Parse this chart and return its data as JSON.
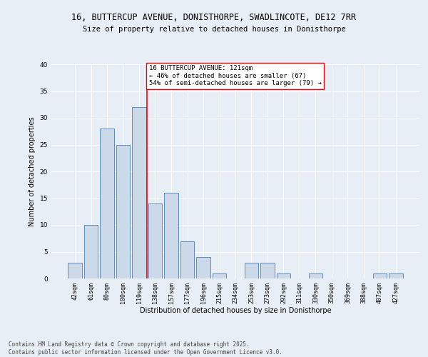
{
  "title_line1": "16, BUTTERCUP AVENUE, DONISTHORPE, SWADLINCOTE, DE12 7RR",
  "title_line2": "Size of property relative to detached houses in Donisthorpe",
  "xlabel": "Distribution of detached houses by size in Donisthorpe",
  "ylabel": "Number of detached properties",
  "bar_labels": [
    "42sqm",
    "61sqm",
    "80sqm",
    "100sqm",
    "119sqm",
    "138sqm",
    "157sqm",
    "177sqm",
    "196sqm",
    "215sqm",
    "234sqm",
    "253sqm",
    "273sqm",
    "292sqm",
    "311sqm",
    "330sqm",
    "350sqm",
    "369sqm",
    "388sqm",
    "407sqm",
    "427sqm"
  ],
  "bar_values": [
    3,
    10,
    28,
    25,
    32,
    14,
    16,
    7,
    4,
    1,
    0,
    3,
    3,
    1,
    0,
    1,
    0,
    0,
    0,
    1,
    1
  ],
  "bar_color": "#ccd9e8",
  "bar_edge_color": "#5b8cc8",
  "vline_x": 4,
  "vline_color": "red",
  "annotation_text": "16 BUTTERCUP AVENUE: 121sqm\n← 46% of detached houses are smaller (67)\n54% of semi-detached houses are larger (79) →",
  "annotation_box_color": "white",
  "annotation_box_edge_color": "red",
  "ylim": [
    0,
    40
  ],
  "yticks": [
    0,
    5,
    10,
    15,
    20,
    25,
    30,
    35,
    40
  ],
  "background_color": "#e8eef5",
  "plot_bg_color": "#e8eef5",
  "footer_line1": "Contains HM Land Registry data © Crown copyright and database right 2025.",
  "footer_line2": "Contains public sector information licensed under the Open Government Licence v3.0.",
  "title_fontsize": 8.5,
  "subtitle_fontsize": 7.5,
  "axis_label_fontsize": 7,
  "tick_fontsize": 6,
  "annotation_fontsize": 6.5,
  "footer_fontsize": 5.5
}
